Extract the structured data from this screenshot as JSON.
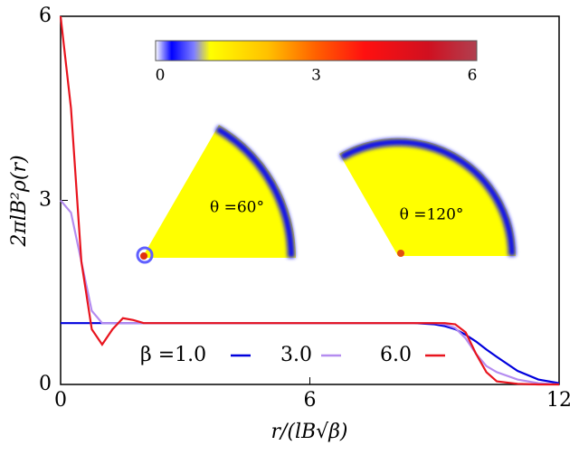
{
  "chart_data": {
    "type": "line",
    "xlabel": "r/(lB√β)",
    "ylabel": "2πlB²ρ(r)",
    "x": [
      0,
      0.25,
      0.5,
      0.75,
      1,
      1.25,
      1.5,
      1.75,
      2,
      3,
      4,
      5,
      6,
      7,
      8,
      8.5,
      9,
      9.25,
      9.5,
      9.75,
      10,
      10.25,
      10.5,
      11,
      11.5,
      12
    ],
    "series": [
      {
        "name": "β =1.0",
        "color": "#0000dd",
        "values": [
          1,
          1,
          1,
          1,
          1,
          1,
          1,
          1,
          1,
          1,
          1,
          1,
          1,
          1,
          1,
          1,
          0.98,
          0.95,
          0.9,
          0.81,
          0.7,
          0.57,
          0.45,
          0.22,
          0.08,
          0.02
        ]
      },
      {
        "name": "3.0",
        "color": "#b48cf0",
        "values": [
          3,
          2.8,
          2.0,
          1.2,
          1.0,
          1,
          1,
          1,
          1,
          1,
          1,
          1,
          1,
          1,
          1,
          1,
          1,
          0.98,
          0.92,
          0.75,
          0.5,
          0.3,
          0.2,
          0.08,
          0.02,
          0
        ]
      },
      {
        "name": "6.0",
        "color": "#e8141e",
        "values": [
          6,
          4.5,
          2.0,
          0.9,
          0.65,
          0.9,
          1.08,
          1.05,
          1.0,
          1,
          1,
          1,
          1,
          1,
          1,
          1,
          1,
          1.0,
          0.98,
          0.85,
          0.5,
          0.2,
          0.05,
          0.01,
          0,
          0
        ]
      }
    ],
    "xlim": [
      0,
      12
    ],
    "xticks": [
      0,
      6,
      12
    ],
    "ylim": [
      0,
      6
    ],
    "yticks": [
      0,
      3,
      6
    ],
    "colorbar": {
      "lim": [
        0,
        6
      ],
      "ticks": [
        0,
        3,
        6
      ]
    },
    "insets": [
      {
        "label": "θ =60°"
      },
      {
        "label": "θ =120°"
      }
    ]
  }
}
